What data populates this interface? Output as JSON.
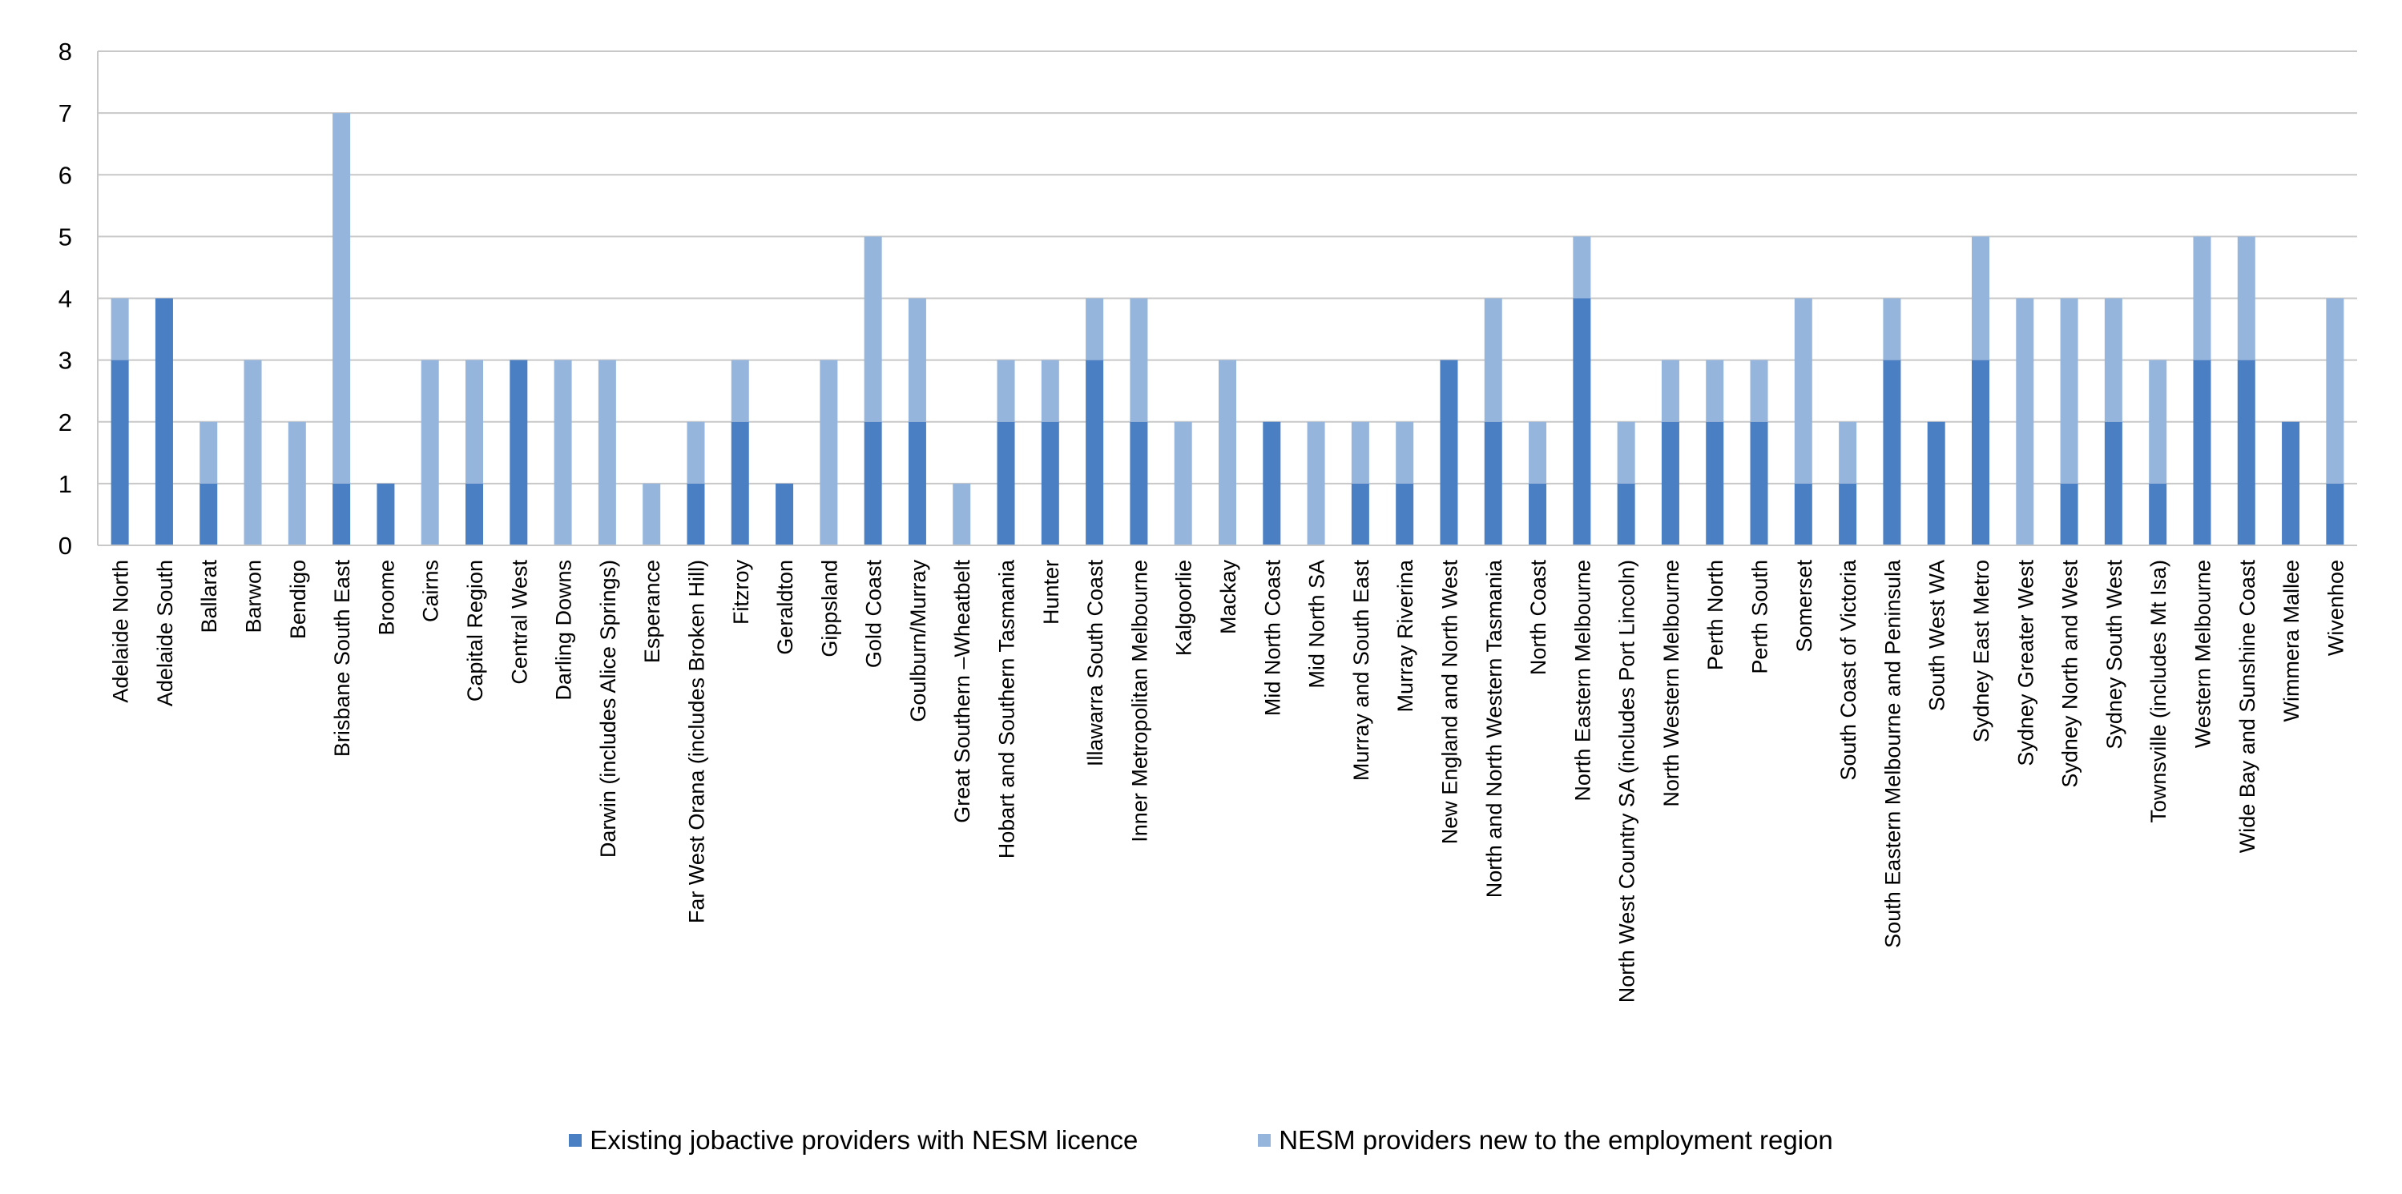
{
  "chart_data": {
    "type": "bar",
    "stacked": true,
    "ylim": [
      0,
      8
    ],
    "yticks": [
      0,
      1,
      2,
      3,
      4,
      5,
      6,
      7,
      8
    ],
    "grid": true,
    "legend_position": "bottom",
    "categories": [
      "Adelaide North",
      "Adelaide South",
      "Ballarat",
      "Barwon",
      "Bendigo",
      "Brisbane South East",
      "Broome",
      "Cairns",
      "Capital Region",
      "Central West",
      "Darling Downs",
      "Darwin (includes Alice Springs)",
      "Esperance",
      "Far West Orana (includes Broken Hill)",
      "Fitzroy",
      "Geraldton",
      "Gippsland",
      "Gold Coast",
      "Goulburn/Murray",
      "Great Southern –Wheatbelt",
      "Hobart and Southern Tasmania",
      "Hunter",
      "Illawarra South Coast",
      "Inner Metropolitan Melbourne",
      "Kalgoorlie",
      "Mackay",
      "Mid North Coast",
      "Mid North SA",
      "Murray and South East",
      "Murray Riverina",
      "New England and North West",
      "North and North Western Tasmania",
      "North Coast",
      "North Eastern Melbourne",
      "North West Country SA (includes Port Lincoln)",
      "North Western Melbourne",
      "Perth North",
      "Perth South",
      "Somerset",
      "South Coast of Victoria",
      "South Eastern Melbourne and Peninsula",
      "South West WA",
      "Sydney East Metro",
      "Sydney Greater West",
      "Sydney North and West",
      "Sydney South West",
      "Townsville (includes Mt Isa)",
      "Western Melbourne",
      "Wide Bay and Sunshine Coast",
      "Wimmera Mallee",
      "Wivenhoe"
    ],
    "series": [
      {
        "name": "Existing jobactive providers with NESM licence",
        "color": "#4a7fc4",
        "values": [
          3,
          4,
          1,
          0,
          0,
          1,
          1,
          0,
          1,
          3,
          0,
          0,
          0,
          1,
          2,
          1,
          0,
          2,
          2,
          0,
          2,
          2,
          3,
          2,
          0,
          0,
          2,
          0,
          1,
          1,
          3,
          2,
          1,
          4,
          1,
          2,
          2,
          2,
          1,
          1,
          3,
          2,
          3,
          0,
          1,
          2,
          1,
          3,
          3,
          2,
          1
        ]
      },
      {
        "name": "NESM providers new to the employment region",
        "color": "#95b5dc",
        "values": [
          1,
          0,
          1,
          3,
          2,
          6,
          0,
          3,
          2,
          0,
          3,
          3,
          1,
          1,
          1,
          0,
          3,
          3,
          2,
          1,
          1,
          1,
          1,
          2,
          2,
          3,
          0,
          2,
          1,
          1,
          0,
          2,
          1,
          1,
          1,
          1,
          1,
          1,
          3,
          1,
          1,
          0,
          2,
          4,
          3,
          2,
          2,
          2,
          2,
          0,
          3
        ]
      }
    ]
  }
}
